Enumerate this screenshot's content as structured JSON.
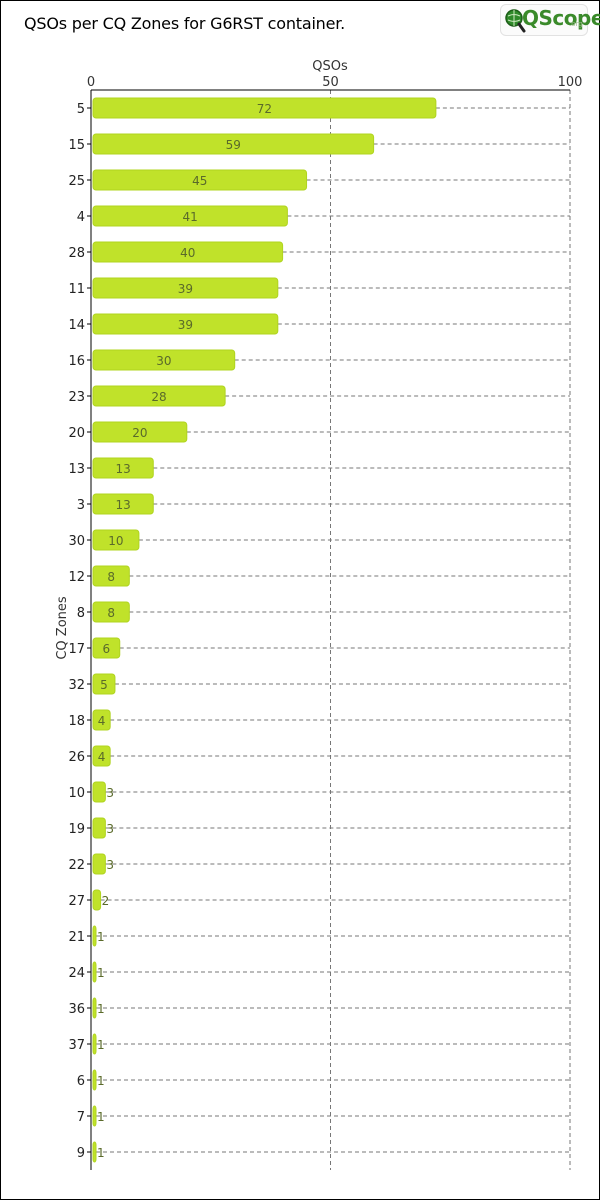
{
  "title": "QSOs per CQ Zones for G6RST container.",
  "logo": {
    "text": "QScope",
    "suffix": ".org",
    "icon": "magnifier-globe-icon"
  },
  "colors": {
    "bar": "#c0e22a",
    "bar_edge": "#b0d41f",
    "bar_label": "#5a6a2a",
    "grid": "#777777",
    "axis": "#000000"
  },
  "chart_data": {
    "type": "bar",
    "orientation": "horizontal",
    "title": "QSOs per CQ Zones for G6RST container.",
    "xlabel": "QSOs",
    "ylabel": "CQ Zones",
    "xlim": [
      0,
      100
    ],
    "xticks": [
      0,
      50,
      100
    ],
    "x_axis_position": "top",
    "grid": true,
    "categories": [
      "5",
      "15",
      "25",
      "4",
      "28",
      "11",
      "14",
      "16",
      "23",
      "20",
      "13",
      "3",
      "30",
      "12",
      "8",
      "17",
      "32",
      "18",
      "26",
      "10",
      "19",
      "22",
      "27",
      "21",
      "24",
      "36",
      "37",
      "6",
      "7",
      "9"
    ],
    "values": [
      72,
      59,
      45,
      41,
      40,
      39,
      39,
      30,
      28,
      20,
      13,
      13,
      10,
      8,
      8,
      6,
      5,
      4,
      4,
      3,
      3,
      3,
      2,
      1,
      1,
      1,
      1,
      1,
      1,
      1
    ]
  }
}
